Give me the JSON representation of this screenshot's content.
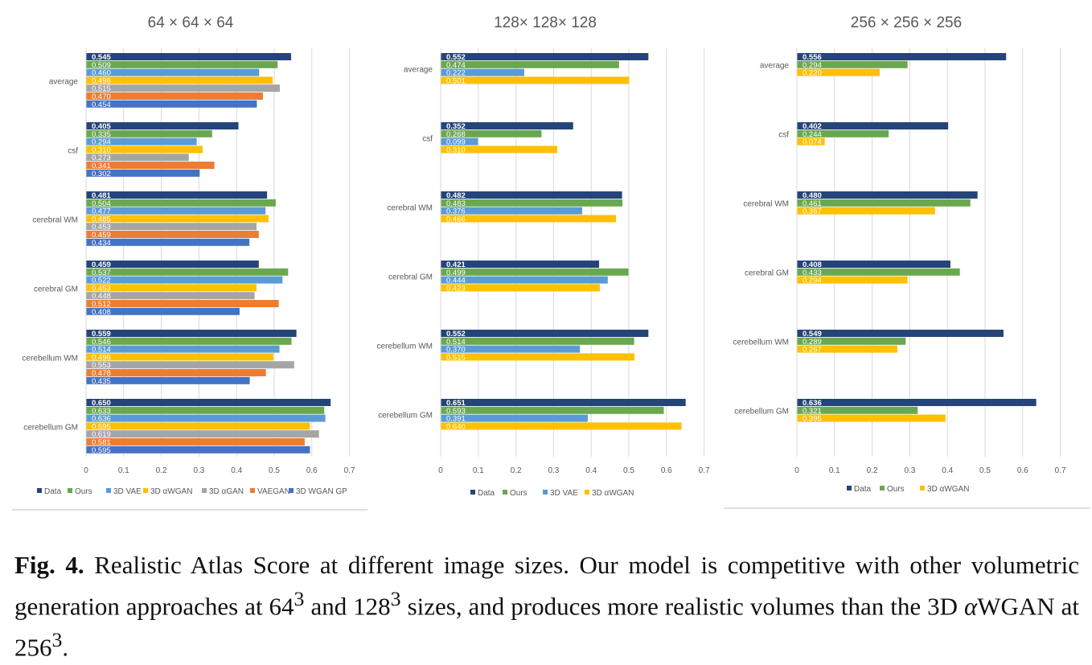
{
  "colors": {
    "Data": "#254479",
    "Ours": "#6aa84f",
    "3D VAE": "#5b9bd5",
    "3D αWGAN": "#ffc000",
    "3D αGAN": "#a5a5a5",
    "VAEGAN": "#ed7d31",
    "3D WGAN GP": "#4472c4"
  },
  "chart_data": [
    {
      "type": "bar",
      "orientation": "horizontal",
      "title": "64 × 64 × 64",
      "categories": [
        "average",
        "csf",
        "cerebral WM",
        "cerebral GM",
        "cerebellum WM",
        "cerebellum GM"
      ],
      "xlim": [
        0,
        0.7
      ],
      "xticks": [
        "0",
        "0.1",
        "0.2",
        "0.3",
        "0.4",
        "0.5",
        "0.6",
        "0.7"
      ],
      "grid": true,
      "legend_position": "bottom",
      "series": [
        {
          "name": "Data",
          "values": [
            0.545,
            0.405,
            0.481,
            0.459,
            0.559,
            0.65
          ],
          "labels": [
            "0.545",
            "0.405",
            "0.481",
            "0.459",
            "0.559",
            "0.650"
          ]
        },
        {
          "name": "Ours",
          "values": [
            0.509,
            0.335,
            0.504,
            0.537,
            0.546,
            0.633
          ],
          "labels": [
            "0.509",
            "0.335",
            "0.504",
            "0.537",
            "0.546",
            "0.633"
          ]
        },
        {
          "name": "3D VAE",
          "values": [
            0.46,
            0.294,
            0.477,
            0.522,
            0.514,
            0.636
          ],
          "labels": [
            "0.460",
            "0.294",
            "0.477",
            "0.522",
            "0.514",
            "0.636"
          ]
        },
        {
          "name": "3D αWGAN",
          "values": [
            0.496,
            0.31,
            0.485,
            0.453,
            0.498,
            0.595
          ],
          "labels": [
            "0.496",
            "0.310",
            "0.485",
            "0.453",
            "0.498",
            "0.595"
          ]
        },
        {
          "name": "3D αGAN",
          "values": [
            0.515,
            0.273,
            0.453,
            0.448,
            0.553,
            0.619
          ],
          "labels": [
            "0.515",
            "0.273",
            "0.453",
            "0.448",
            "0.553",
            "0.619"
          ]
        },
        {
          "name": "VAEGAN",
          "values": [
            0.47,
            0.341,
            0.459,
            0.512,
            0.478,
            0.581
          ],
          "labels": [
            "0.470",
            "0.341",
            "0.459",
            "0.512",
            "0.478",
            "0.581"
          ]
        },
        {
          "name": "3D WGAN GP",
          "values": [
            0.454,
            0.302,
            0.434,
            0.408,
            0.435,
            0.595
          ],
          "labels": [
            "0.454",
            "0.302",
            "0.434",
            "0.408",
            "0.435",
            "0.595"
          ]
        }
      ]
    },
    {
      "type": "bar",
      "orientation": "horizontal",
      "title": "128× 128× 128",
      "categories": [
        "average",
        "csf",
        "cerebral WM",
        "cerebral GM",
        "cerebellum WM",
        "cerebellum GM"
      ],
      "xlim": [
        0,
        0.7
      ],
      "xticks": [
        "0",
        "0.1",
        "0.2",
        "0.3",
        "0.4",
        "0.5",
        "0.6",
        "0.7"
      ],
      "grid": true,
      "legend_position": "bottom",
      "series": [
        {
          "name": "Data",
          "values": [
            0.552,
            0.352,
            0.482,
            0.421,
            0.552,
            0.651
          ],
          "labels": [
            "0.552",
            "0.352",
            "0.482",
            "0.421",
            "0.552",
            "0.651"
          ]
        },
        {
          "name": "Ours",
          "values": [
            0.474,
            0.268,
            0.483,
            0.499,
            0.514,
            0.593
          ],
          "labels": [
            "0.474",
            "0.268",
            "0.483",
            "0.499",
            "0.514",
            "0.593"
          ]
        },
        {
          "name": "3D VAE",
          "values": [
            0.222,
            0.099,
            0.376,
            0.444,
            0.37,
            0.391
          ],
          "labels": [
            "0.222",
            "0.099",
            "0.376",
            "0.444",
            "0.370",
            "0.391"
          ]
        },
        {
          "name": "3D αWGAN",
          "values": [
            0.501,
            0.31,
            0.466,
            0.423,
            0.515,
            0.64
          ],
          "labels": [
            "0.501",
            "0.310",
            "0.466",
            "0.423",
            "0.515",
            "0.640"
          ]
        }
      ]
    },
    {
      "type": "bar",
      "orientation": "horizontal",
      "title": "256 × 256 × 256",
      "categories": [
        "average",
        "csf",
        "cerebral WM",
        "cerebral GM",
        "cerebellum WM",
        "cerebellum GM"
      ],
      "xlim": [
        0,
        0.7
      ],
      "xticks": [
        "0",
        "0.1",
        "0.2",
        "0.3",
        "0.4",
        "0.5",
        "0.6",
        "0.7"
      ],
      "grid": true,
      "legend_position": "bottom",
      "series": [
        {
          "name": "Data",
          "values": [
            0.556,
            0.402,
            0.48,
            0.408,
            0.549,
            0.636
          ],
          "labels": [
            "0.556",
            "0.402",
            "0.480",
            "0.408",
            "0.549",
            "0.636"
          ]
        },
        {
          "name": "Ours",
          "values": [
            0.294,
            0.244,
            0.461,
            0.433,
            0.289,
            0.321
          ],
          "labels": [
            "0.294",
            "0.244",
            "0.461",
            "0.433",
            "0.289",
            "0.321"
          ]
        },
        {
          "name": "3D αWGAN",
          "values": [
            0.22,
            0.074,
            0.367,
            0.294,
            0.267,
            0.395
          ],
          "labels": [
            "0.220",
            "0.074",
            "0.367",
            "0.294",
            "0.267",
            "0.395"
          ]
        }
      ]
    }
  ],
  "caption": {
    "label": "Fig. 4.",
    "text_1": " Realistic Atlas Score at different image sizes. Our model is competitive with other volumetric generation approaches at 64",
    "sup_1": "3",
    "text_2": " and 128",
    "sup_2": "3",
    "text_3": " sizes, and produces more realistic volumes than the 3D ",
    "alpha": "α",
    "text_4": "WGAN at 256",
    "sup_3": "3",
    "text_5": "."
  }
}
